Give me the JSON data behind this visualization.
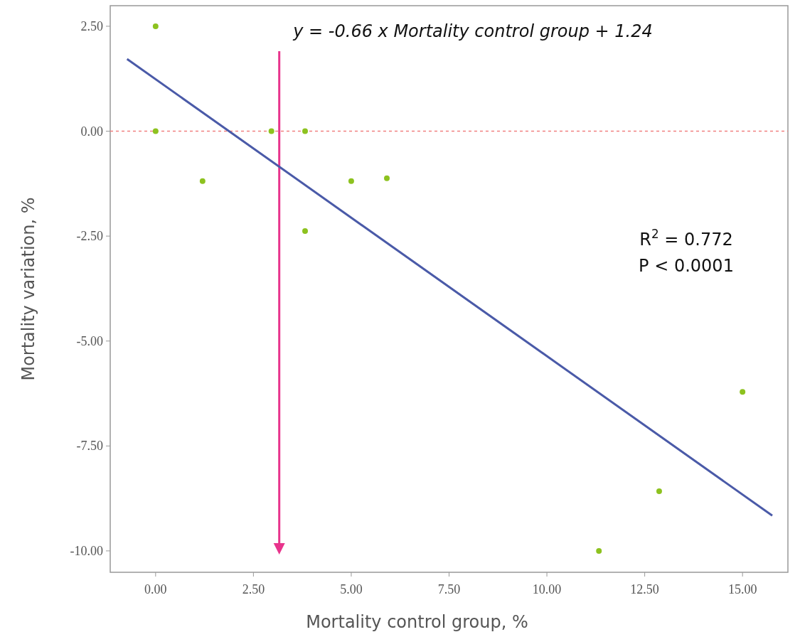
{
  "chart_data": {
    "type": "scatter",
    "xlabel": "Mortality control group, %",
    "ylabel": "Mortality variation, %",
    "xlim": [
      -1.16,
      16.16
    ],
    "ylim": [
      -10.51,
      2.99
    ],
    "xticks": [
      {
        "value": 0,
        "label": "0.00"
      },
      {
        "value": 2.5,
        "label": "2.50"
      },
      {
        "value": 5,
        "label": "5.00"
      },
      {
        "value": 7.5,
        "label": "7.50"
      },
      {
        "value": 10,
        "label": "10.00"
      },
      {
        "value": 12.5,
        "label": "12.50"
      },
      {
        "value": 15,
        "label": "15.00"
      }
    ],
    "yticks": [
      {
        "value": 2.5,
        "label": "2.50"
      },
      {
        "value": 0,
        "label": "0.00"
      },
      {
        "value": -2.5,
        "label": "-2.50"
      },
      {
        "value": -5,
        "label": "-5.00"
      },
      {
        "value": -7.5,
        "label": "-7.50"
      },
      {
        "value": -10,
        "label": "-10.00"
      }
    ],
    "grid": false,
    "legend": false,
    "marker": "circle",
    "series": [
      {
        "color": "#8dc21f",
        "x": [
          0,
          0,
          1.2,
          2.96,
          3.82,
          3.82,
          5.0,
          5.91,
          11.33,
          12.87,
          15.0
        ],
        "values": [
          2.5,
          0,
          -1.19,
          0,
          0,
          -2.38,
          -1.19,
          -1.12,
          -10,
          -8.58,
          -6.21
        ]
      },
      {
        "type": "line",
        "color": "#4a5aa8",
        "line_style": "solid",
        "marker": "none",
        "x": [
          -0.73,
          15.76
        ],
        "values": [
          1.72,
          -9.16
        ]
      }
    ],
    "ref_lines": [
      {
        "axis": "y",
        "value": 0,
        "color": "#f08080",
        "line_style": "dashed"
      },
      {
        "axis": "x",
        "value": 3.16,
        "color": "#e8348c",
        "line_style": "solid"
      }
    ],
    "annotations": [
      "y = -0.66 x Mortality control group + 1.24",
      "R$^{2}$ = 0.772",
      "P < 0.0001"
    ]
  }
}
